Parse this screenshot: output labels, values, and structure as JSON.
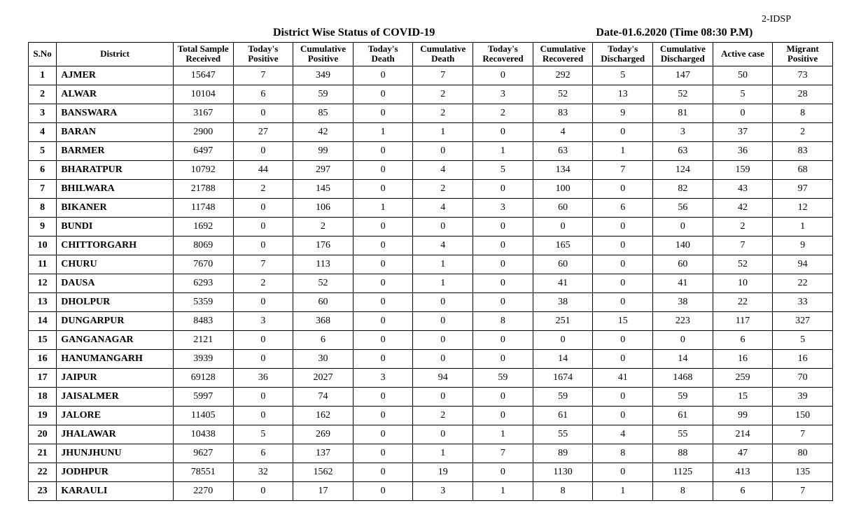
{
  "header": {
    "page_tag": "2-IDSP",
    "title": "District Wise Status of  COVID-19",
    "date": "Date-01.6.2020 (Time 08:30 P.M)"
  },
  "table": {
    "columns": [
      "S.No",
      "District",
      "Total Sample Received",
      "Today's Positive",
      "Cumulative Positive",
      "Today's Death",
      "Cumulative Death",
      "Today's Recovered",
      "Cumulative Recovered",
      "Today's Discharged",
      "Cumulative Discharged",
      "Active case",
      "Migrant Positive"
    ],
    "rows": [
      {
        "sno": 1,
        "district": "AJMER",
        "v": [
          15647,
          7,
          349,
          0,
          7,
          0,
          292,
          5,
          147,
          50,
          73
        ]
      },
      {
        "sno": 2,
        "district": "ALWAR",
        "v": [
          10104,
          6,
          59,
          0,
          2,
          3,
          52,
          13,
          52,
          5,
          28
        ]
      },
      {
        "sno": 3,
        "district": "BANSWARA",
        "v": [
          3167,
          0,
          85,
          0,
          2,
          2,
          83,
          9,
          81,
          0,
          8
        ]
      },
      {
        "sno": 4,
        "district": "BARAN",
        "v": [
          2900,
          27,
          42,
          1,
          1,
          0,
          4,
          0,
          3,
          37,
          2
        ]
      },
      {
        "sno": 5,
        "district": "BARMER",
        "v": [
          6497,
          0,
          99,
          0,
          0,
          1,
          63,
          1,
          63,
          36,
          83
        ]
      },
      {
        "sno": 6,
        "district": "BHARATPUR",
        "v": [
          10792,
          44,
          297,
          0,
          4,
          5,
          134,
          7,
          124,
          159,
          68
        ]
      },
      {
        "sno": 7,
        "district": "BHILWARA",
        "v": [
          21788,
          2,
          145,
          0,
          2,
          0,
          100,
          0,
          82,
          43,
          97
        ]
      },
      {
        "sno": 8,
        "district": "BIKANER",
        "v": [
          11748,
          0,
          106,
          1,
          4,
          3,
          60,
          6,
          56,
          42,
          12
        ]
      },
      {
        "sno": 9,
        "district": "BUNDI",
        "v": [
          1692,
          0,
          2,
          0,
          0,
          0,
          0,
          0,
          0,
          2,
          1
        ]
      },
      {
        "sno": 10,
        "district": "CHITTORGARH",
        "v": [
          8069,
          0,
          176,
          0,
          4,
          0,
          165,
          0,
          140,
          7,
          9
        ]
      },
      {
        "sno": 11,
        "district": "CHURU",
        "v": [
          7670,
          7,
          113,
          0,
          1,
          0,
          60,
          0,
          60,
          52,
          94
        ]
      },
      {
        "sno": 12,
        "district": "DAUSA",
        "v": [
          6293,
          2,
          52,
          0,
          1,
          0,
          41,
          0,
          41,
          10,
          22
        ]
      },
      {
        "sno": 13,
        "district": "DHOLPUR",
        "v": [
          5359,
          0,
          60,
          0,
          0,
          0,
          38,
          0,
          38,
          22,
          33
        ]
      },
      {
        "sno": 14,
        "district": "DUNGARPUR",
        "v": [
          8483,
          3,
          368,
          0,
          0,
          8,
          251,
          15,
          223,
          117,
          327
        ]
      },
      {
        "sno": 15,
        "district": "GANGANAGAR",
        "v": [
          2121,
          0,
          6,
          0,
          0,
          0,
          0,
          0,
          0,
          6,
          5
        ]
      },
      {
        "sno": 16,
        "district": "HANUMANGARH",
        "v": [
          3939,
          0,
          30,
          0,
          0,
          0,
          14,
          0,
          14,
          16,
          16
        ]
      },
      {
        "sno": 17,
        "district": "JAIPUR",
        "v": [
          69128,
          36,
          2027,
          3,
          94,
          59,
          1674,
          41,
          1468,
          259,
          70
        ]
      },
      {
        "sno": 18,
        "district": "JAISALMER",
        "v": [
          5997,
          0,
          74,
          0,
          0,
          0,
          59,
          0,
          59,
          15,
          39
        ]
      },
      {
        "sno": 19,
        "district": "JALORE",
        "v": [
          11405,
          0,
          162,
          0,
          2,
          0,
          61,
          0,
          61,
          99,
          150
        ]
      },
      {
        "sno": 20,
        "district": "JHALAWAR",
        "v": [
          10438,
          5,
          269,
          0,
          0,
          1,
          55,
          4,
          55,
          214,
          7
        ]
      },
      {
        "sno": 21,
        "district": "JHUNJHUNU",
        "v": [
          9627,
          6,
          137,
          0,
          1,
          7,
          89,
          8,
          88,
          47,
          80
        ]
      },
      {
        "sno": 22,
        "district": "JODHPUR",
        "v": [
          78551,
          32,
          1562,
          0,
          19,
          0,
          1130,
          0,
          1125,
          413,
          135
        ]
      },
      {
        "sno": 23,
        "district": "KARAULI",
        "v": [
          2270,
          0,
          17,
          0,
          3,
          1,
          8,
          1,
          8,
          6,
          7
        ]
      }
    ]
  }
}
